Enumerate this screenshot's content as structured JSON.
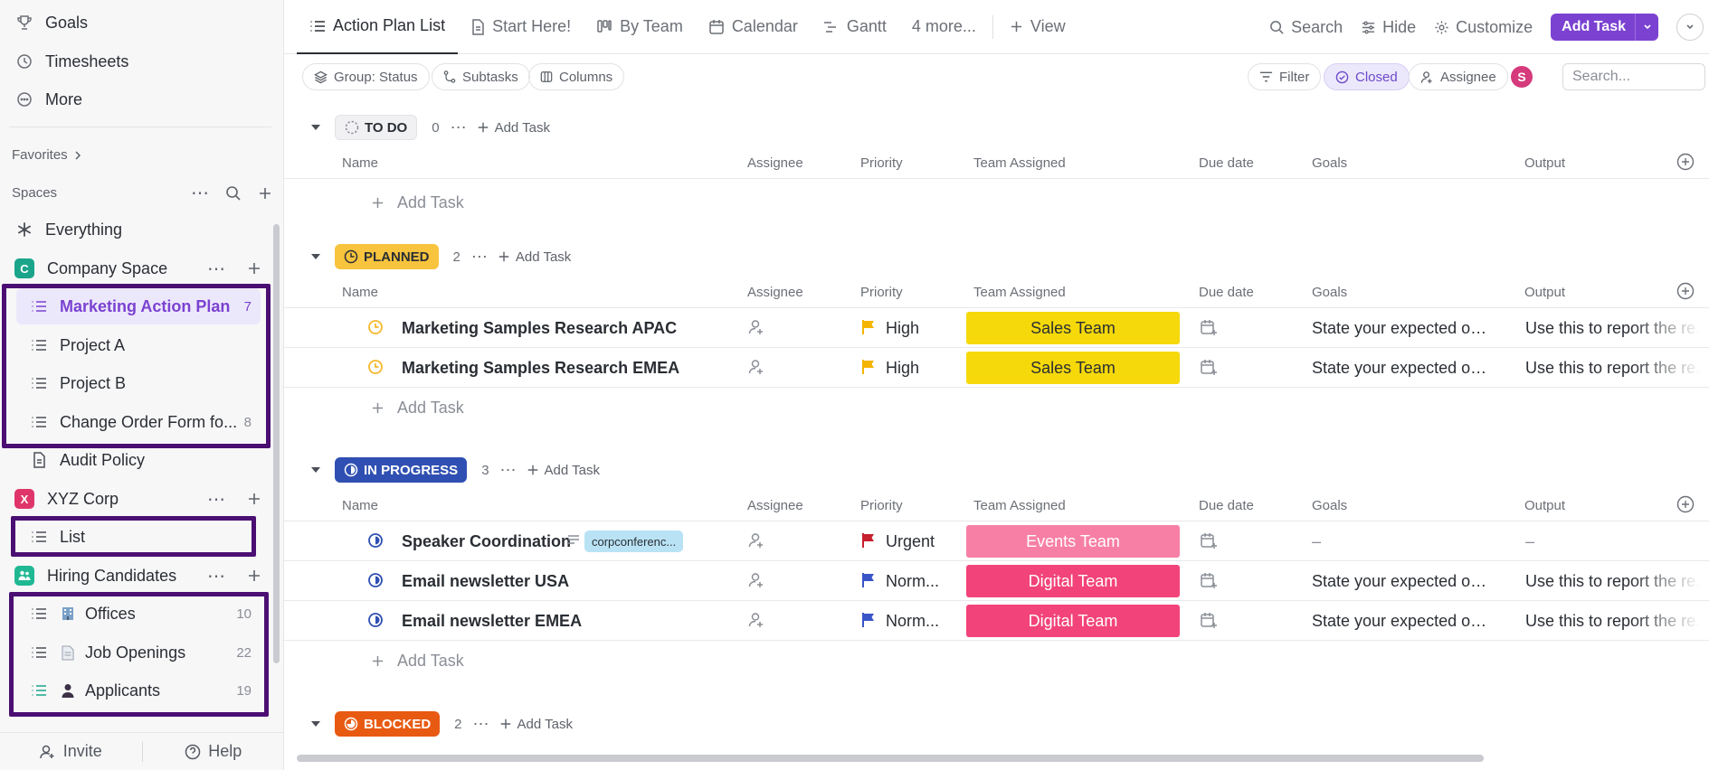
{
  "sidebar": {
    "top_items": [
      {
        "label": "Goals",
        "icon": "trophy-icon"
      },
      {
        "label": "Timesheets",
        "icon": "clock-icon"
      },
      {
        "label": "More",
        "icon": "more-circle-icon"
      }
    ],
    "favorites_label": "Favorites",
    "spaces_label": "Spaces",
    "everything_label": "Everything",
    "spaces": [
      {
        "name": "Company Space",
        "badge": "C",
        "color": "#1aa58a",
        "lists": [
          {
            "label": "Marketing Action Plan",
            "count": "7",
            "active": true
          },
          {
            "label": "Project A",
            "count": ""
          },
          {
            "label": "Project B",
            "count": ""
          },
          {
            "label": "Change Order Form fo...",
            "count": "8"
          }
        ],
        "doc": "Audit Policy"
      },
      {
        "name": "XYZ Corp",
        "badge": "X",
        "color": "#e0356b",
        "lists": [
          {
            "label": "List",
            "count": ""
          }
        ]
      },
      {
        "name": "Hiring Candidates",
        "badge": "",
        "color": "#1fb893",
        "lists": [
          {
            "label": "Offices",
            "count": "10",
            "emoji": "building-icon"
          },
          {
            "label": "Job Openings",
            "count": "22",
            "emoji": "document-icon"
          },
          {
            "label": "Applicants",
            "count": "19",
            "emoji": "person-icon"
          }
        ]
      }
    ],
    "footer": {
      "invite": "Invite",
      "help": "Help"
    }
  },
  "topbar": {
    "tabs": [
      {
        "label": "Action Plan List",
        "active": true
      },
      {
        "label": "Start Here!"
      },
      {
        "label": "By Team"
      },
      {
        "label": "Calendar"
      },
      {
        "label": "Gantt"
      },
      {
        "label": "4 more..."
      }
    ],
    "add_view": "View",
    "search": "Search",
    "hide": "Hide",
    "customize": "Customize",
    "add_task": "Add Task"
  },
  "filterbar": {
    "group": "Group: Status",
    "subtasks": "Subtasks",
    "columns": "Columns",
    "filter": "Filter",
    "closed": "Closed",
    "assignee": "Assignee",
    "avatar": "S",
    "search_placeholder": "Search..."
  },
  "columns": {
    "name": "Name",
    "assignee": "Assignee",
    "priority": "Priority",
    "team": "Team Assigned",
    "due": "Due date",
    "goals": "Goals",
    "output": "Output"
  },
  "add_task_label": "Add Task",
  "groups": [
    {
      "status": "TO DO",
      "count": "0",
      "bg": "#f1f1f3",
      "fg": "#2a2e34",
      "tasks": []
    },
    {
      "status": "PLANNED",
      "count": "2",
      "bg": "#f8c43e",
      "fg": "#2a2e34",
      "tasks": [
        {
          "name": "Marketing Samples Research APAC",
          "priority": "High",
          "flag": "#f4b400",
          "team": "Sales Team",
          "team_bg": "#f5d90a",
          "team_fg": "#2a2e34",
          "goals": "State your expected out-...",
          "output": "Use this to report the re..."
        },
        {
          "name": "Marketing Samples Research EMEA",
          "priority": "High",
          "flag": "#f4b400",
          "team": "Sales Team",
          "team_bg": "#f5d90a",
          "team_fg": "#2a2e34",
          "goals": "State your expected out-...",
          "output": "Use this to report the re..."
        }
      ]
    },
    {
      "status": "IN PROGRESS",
      "count": "3",
      "bg": "#2f4fb2",
      "fg": "#ffffff",
      "tasks": [
        {
          "name": "Speaker Coordination",
          "tag": "corpconferenc...",
          "priority": "Urgent",
          "flag": "#c7202e",
          "team": "Events Team",
          "team_bg": "#f77fa6",
          "team_fg": "#ffffff",
          "goals": "–",
          "output": "–"
        },
        {
          "name": "Email newsletter USA",
          "priority": "Norm...",
          "flag": "#3a55c8",
          "team": "Digital Team",
          "team_bg": "#f2437a",
          "team_fg": "#ffffff",
          "goals": "State your expected out-...",
          "output": "Use this to report the re..."
        },
        {
          "name": "Email newsletter EMEA",
          "priority": "Norm...",
          "flag": "#3a55c8",
          "team": "Digital Team",
          "team_bg": "#f2437a",
          "team_fg": "#ffffff",
          "goals": "State your expected out-...",
          "output": "Use this to report the re..."
        }
      ]
    },
    {
      "status": "BLOCKED",
      "count": "2",
      "bg": "#e85a12",
      "fg": "#ffffff",
      "tasks": []
    }
  ]
}
